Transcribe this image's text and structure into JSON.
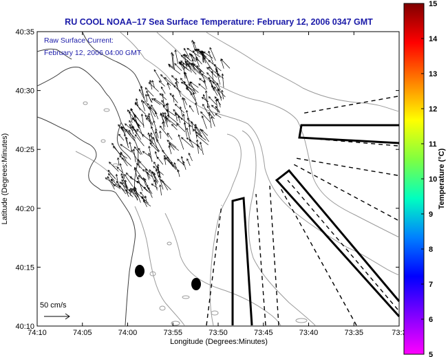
{
  "title": "RU COOL  NOAA–17  Sea Surface Temperature:  February 12, 2006 0347 GMT",
  "annotation": {
    "line1": "Raw Surface Current:",
    "line2": "February 12, 2006 04:00 GMT"
  },
  "scale_label": "50 cm/s",
  "x_axis": {
    "label": "Longitude (Degrees:Minutes)",
    "ticks": [
      "74:10",
      "74:05",
      "74:00",
      "73:55",
      "73:50",
      "73:45",
      "73:40",
      "73:35",
      "73:3"
    ]
  },
  "y_axis": {
    "label": "Latitude (Degrees:Minutes)",
    "ticks": [
      "40:35",
      "40:30",
      "40:25",
      "40:20",
      "40:15",
      "40:10"
    ]
  },
  "colorbar": {
    "label": "Temperature (°C)",
    "ticks": [
      "15",
      "14",
      "13",
      "12",
      "11",
      "10",
      "9",
      "8",
      "7",
      "6",
      "5"
    ],
    "colors": [
      "#7f0000",
      "#ff0000",
      "#ff8000",
      "#ffff00",
      "#80ff40",
      "#00ffc0",
      "#0080ff",
      "#0000ff",
      "#8000ff",
      "#ff00ff"
    ]
  },
  "colors": {
    "title": "#1a1aa8",
    "contour": "#999999",
    "coast": "#333333"
  }
}
